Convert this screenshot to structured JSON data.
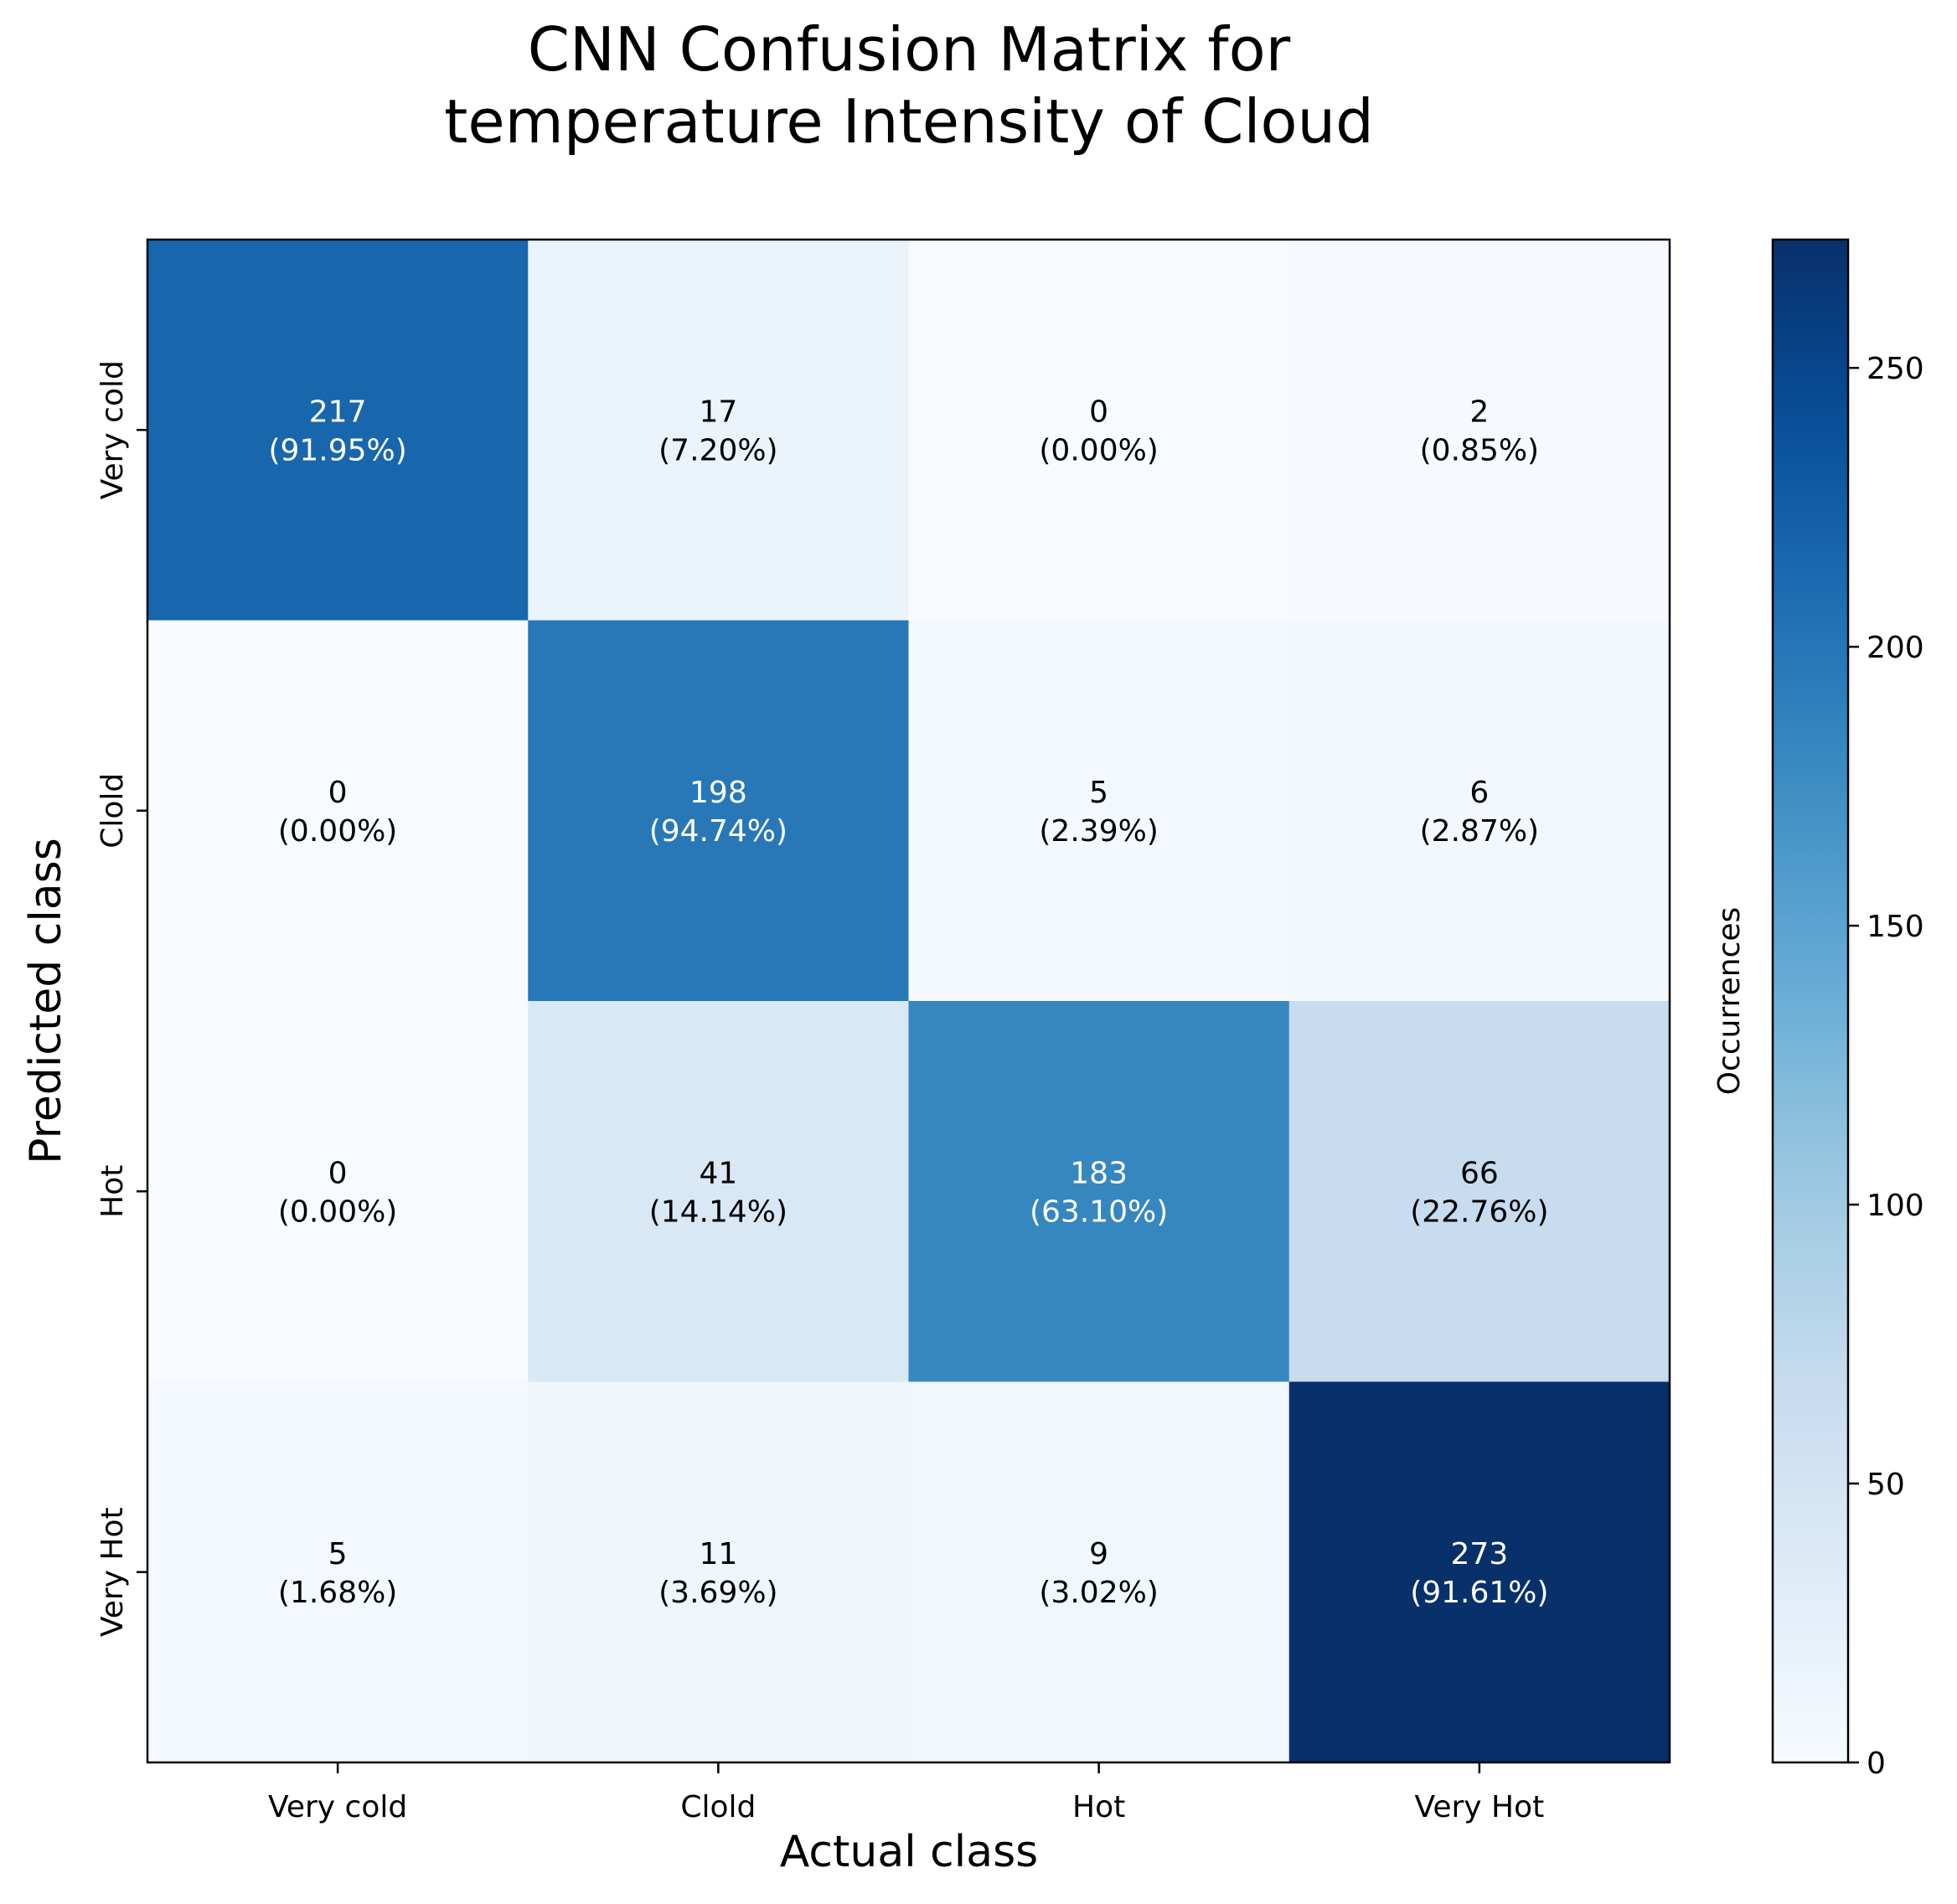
{
  "chart_data": {
    "type": "heatmap",
    "title_lines": [
      "CNN Confusion Matrix for",
      "temperature Intensity of Cloud"
    ],
    "xlabel": "Actual class",
    "ylabel": "Predicted class",
    "x_categories": [
      "Very cold",
      "Clold",
      "Hot",
      "Very Hot"
    ],
    "y_categories": [
      "Very cold",
      "Clold",
      "Hot",
      "Very Hot"
    ],
    "values": [
      [
        217,
        17,
        0,
        2
      ],
      [
        0,
        198,
        5,
        6
      ],
      [
        0,
        41,
        183,
        66
      ],
      [
        5,
        11,
        9,
        273
      ]
    ],
    "percentages": [
      [
        "(91.95%)",
        "(7.20%)",
        "(0.00%)",
        "(0.85%)"
      ],
      [
        "(0.00%)",
        "(94.74%)",
        "(2.39%)",
        "(2.87%)"
      ],
      [
        "(0.00%)",
        "(14.14%)",
        "(63.10%)",
        "(22.76%)"
      ],
      [
        "(1.68%)",
        "(3.69%)",
        "(3.02%)",
        "(91.61%)"
      ]
    ],
    "colorbar": {
      "label": "Occurrences",
      "min": 0,
      "max": 273,
      "ticks": [
        0,
        50,
        100,
        150,
        200,
        250
      ],
      "colormap": "Blues"
    },
    "grid": false
  }
}
